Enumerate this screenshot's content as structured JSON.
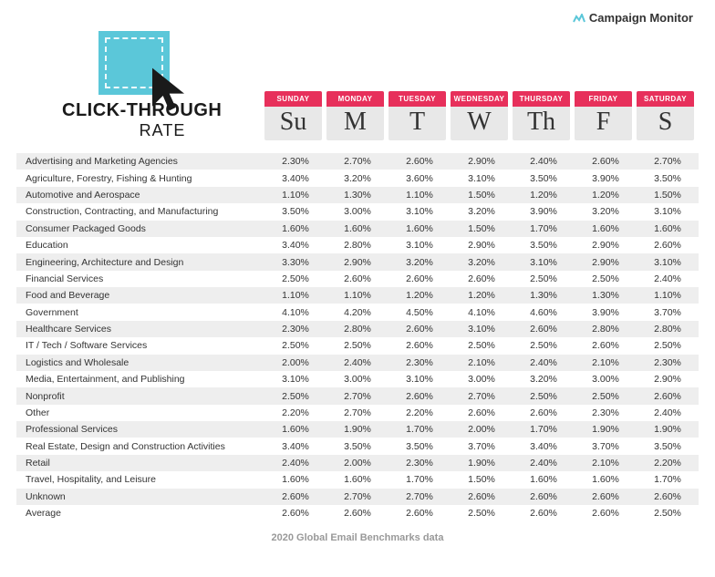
{
  "brand": "Campaign Monitor",
  "title_main": "CLICK-THROUGH",
  "title_sub": "RATE",
  "footer": "2020 Global Email Benchmarks data",
  "colors": {
    "header_pill": "#e7305b",
    "header_bg": "#e8e8e8",
    "row_odd": "#eeeeee",
    "row_even": "#ffffff",
    "square": "#5bc7d9",
    "cursor": "#1a1a1a"
  },
  "table": {
    "type": "table",
    "days": [
      {
        "label": "SUNDAY",
        "abbrev": "Su"
      },
      {
        "label": "MONDAY",
        "abbrev": "M"
      },
      {
        "label": "TUESDAY",
        "abbrev": "T"
      },
      {
        "label": "WEDNESDAY",
        "abbrev": "W"
      },
      {
        "label": "THURSDAY",
        "abbrev": "Th"
      },
      {
        "label": "FRIDAY",
        "abbrev": "F"
      },
      {
        "label": "SATURDAY",
        "abbrev": "S"
      }
    ],
    "rows": [
      {
        "label": "Advertising and Marketing Agencies",
        "vals": [
          "2.30%",
          "2.70%",
          "2.60%",
          "2.90%",
          "2.40%",
          "2.60%",
          "2.70%"
        ]
      },
      {
        "label": "Agriculture, Forestry, Fishing & Hunting",
        "vals": [
          "3.40%",
          "3.20%",
          "3.60%",
          "3.10%",
          "3.50%",
          "3.90%",
          "3.50%"
        ]
      },
      {
        "label": "Automotive and Aerospace",
        "vals": [
          "1.10%",
          "1.30%",
          "1.10%",
          "1.50%",
          "1.20%",
          "1.20%",
          "1.50%"
        ]
      },
      {
        "label": "Construction, Contracting, and Manufacturing",
        "vals": [
          "3.50%",
          "3.00%",
          "3.10%",
          "3.20%",
          "3.90%",
          "3.20%",
          "3.10%"
        ]
      },
      {
        "label": "Consumer Packaged Goods",
        "vals": [
          "1.60%",
          "1.60%",
          "1.60%",
          "1.50%",
          "1.70%",
          "1.60%",
          "1.60%"
        ]
      },
      {
        "label": "Education",
        "vals": [
          "3.40%",
          "2.80%",
          "3.10%",
          "2.90%",
          "3.50%",
          "2.90%",
          "2.60%"
        ]
      },
      {
        "label": "Engineering, Architecture and Design",
        "vals": [
          "3.30%",
          "2.90%",
          "3.20%",
          "3.20%",
          "3.10%",
          "2.90%",
          "3.10%"
        ]
      },
      {
        "label": "Financial Services",
        "vals": [
          "2.50%",
          "2.60%",
          "2.60%",
          "2.60%",
          "2.50%",
          "2.50%",
          "2.40%"
        ]
      },
      {
        "label": "Food and Beverage",
        "vals": [
          "1.10%",
          "1.10%",
          "1.20%",
          "1.20%",
          "1.30%",
          "1.30%",
          "1.10%"
        ]
      },
      {
        "label": "Government",
        "vals": [
          "4.10%",
          "4.20%",
          "4.50%",
          "4.10%",
          "4.60%",
          "3.90%",
          "3.70%"
        ]
      },
      {
        "label": "Healthcare Services",
        "vals": [
          "2.30%",
          "2.80%",
          "2.60%",
          "3.10%",
          "2.60%",
          "2.80%",
          "2.80%"
        ]
      },
      {
        "label": "IT / Tech / Software Services",
        "vals": [
          "2.50%",
          "2.50%",
          "2.60%",
          "2.50%",
          "2.50%",
          "2.60%",
          "2.50%"
        ]
      },
      {
        "label": "Logistics and Wholesale",
        "vals": [
          "2.00%",
          "2.40%",
          "2.30%",
          "2.10%",
          "2.40%",
          "2.10%",
          "2.30%"
        ]
      },
      {
        "label": "Media, Entertainment, and Publishing",
        "vals": [
          "3.10%",
          "3.00%",
          "3.10%",
          "3.00%",
          "3.20%",
          "3.00%",
          "2.90%"
        ]
      },
      {
        "label": "Nonprofit",
        "vals": [
          "2.50%",
          "2.70%",
          "2.60%",
          "2.70%",
          "2.50%",
          "2.50%",
          "2.60%"
        ]
      },
      {
        "label": "Other",
        "vals": [
          "2.20%",
          "2.70%",
          "2.20%",
          "2.60%",
          "2.60%",
          "2.30%",
          "2.40%"
        ]
      },
      {
        "label": "Professional Services",
        "vals": [
          "1.60%",
          "1.90%",
          "1.70%",
          "2.00%",
          "1.70%",
          "1.90%",
          "1.90%"
        ]
      },
      {
        "label": "Real Estate, Design and Construction Activities",
        "vals": [
          "3.40%",
          "3.50%",
          "3.50%",
          "3.70%",
          "3.40%",
          "3.70%",
          "3.50%"
        ]
      },
      {
        "label": "Retail",
        "vals": [
          "2.40%",
          "2.00%",
          "2.30%",
          "1.90%",
          "2.40%",
          "2.10%",
          "2.20%"
        ]
      },
      {
        "label": "Travel, Hospitality, and Leisure",
        "vals": [
          "1.60%",
          "1.60%",
          "1.70%",
          "1.50%",
          "1.60%",
          "1.60%",
          "1.70%"
        ]
      },
      {
        "label": "Unknown",
        "vals": [
          "2.60%",
          "2.70%",
          "2.70%",
          "2.60%",
          "2.60%",
          "2.60%",
          "2.60%"
        ]
      },
      {
        "label": "Average",
        "vals": [
          "2.60%",
          "2.60%",
          "2.60%",
          "2.50%",
          "2.60%",
          "2.60%",
          "2.50%"
        ]
      }
    ]
  }
}
